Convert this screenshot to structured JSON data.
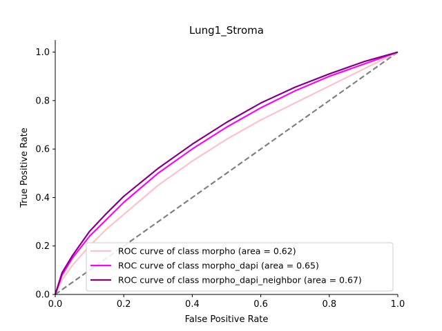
{
  "chart_data": {
    "type": "line",
    "title": "Lung1_Stroma",
    "xlabel": "False Positive Rate",
    "ylabel": "True Positive Rate",
    "xlim": [
      0,
      1
    ],
    "ylim": [
      0,
      1.05
    ],
    "xticks": [
      0.0,
      0.2,
      0.4,
      0.6,
      0.8,
      1.0
    ],
    "xtick_labels": [
      "0.0",
      "0.2",
      "0.4",
      "0.6",
      "0.8",
      "1.0"
    ],
    "yticks": [
      0.0,
      0.2,
      0.4,
      0.6,
      0.8,
      1.0
    ],
    "ytick_labels": [
      "0.0",
      "0.2",
      "0.4",
      "0.6",
      "0.8",
      "1.0"
    ],
    "grid": false,
    "legend_position": "lower-right",
    "series": [
      {
        "name": "ROC curve of class morpho (area = 0.62)",
        "color": "#ffc0cb",
        "x": [
          0,
          0.02,
          0.05,
          0.1,
          0.15,
          0.2,
          0.3,
          0.4,
          0.5,
          0.6,
          0.7,
          0.8,
          0.9,
          1.0
        ],
        "y": [
          0,
          0.06,
          0.12,
          0.2,
          0.27,
          0.33,
          0.45,
          0.55,
          0.64,
          0.72,
          0.79,
          0.86,
          0.93,
          1.0
        ]
      },
      {
        "name": "ROC curve of class morpho_dapi (area = 0.65)",
        "color": "#ff00ff",
        "x": [
          0,
          0.02,
          0.05,
          0.1,
          0.15,
          0.2,
          0.3,
          0.4,
          0.5,
          0.6,
          0.7,
          0.8,
          0.9,
          1.0
        ],
        "y": [
          0,
          0.08,
          0.15,
          0.24,
          0.31,
          0.38,
          0.5,
          0.6,
          0.69,
          0.77,
          0.84,
          0.9,
          0.95,
          1.0
        ]
      },
      {
        "name": "ROC curve of class morpho_dapi_neighbor (area = 0.67)",
        "color": "#800080",
        "x": [
          0,
          0.02,
          0.05,
          0.1,
          0.15,
          0.2,
          0.3,
          0.4,
          0.5,
          0.6,
          0.7,
          0.8,
          0.9,
          1.0
        ],
        "y": [
          0,
          0.09,
          0.16,
          0.26,
          0.335,
          0.405,
          0.52,
          0.62,
          0.71,
          0.79,
          0.855,
          0.91,
          0.96,
          1.0
        ]
      }
    ],
    "reference_line": {
      "x": [
        0,
        1
      ],
      "y": [
        0,
        1
      ],
      "color": "#808080",
      "style": "dashed"
    }
  }
}
